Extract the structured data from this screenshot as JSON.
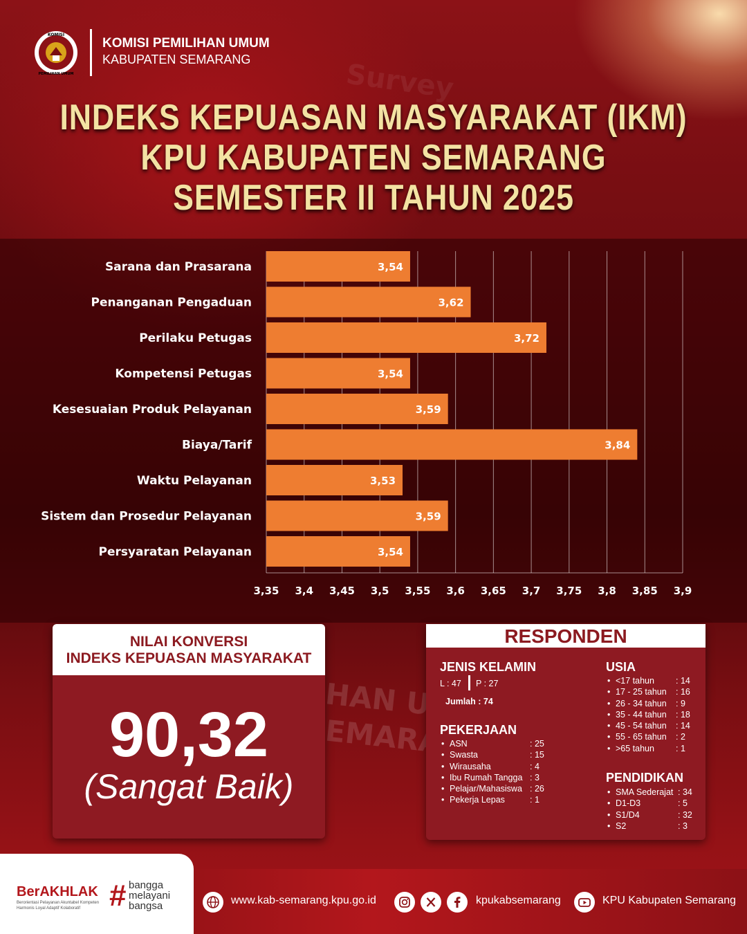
{
  "header": {
    "org_line1": "KOMISI PEMILIHAN UMUM",
    "org_line2": "KABUPATEN SEMARANG",
    "logo_text_top": "KOMISI",
    "logo_text_bottom": "PEMILIHAN UMUM"
  },
  "title": {
    "line1": "INDEKS KEPUASAN MASYARAKAT (IKM)",
    "line2": "KPU KABUPATEN SEMARANG",
    "line3": "SEMESTER II TAHUN 2025"
  },
  "chart_data": {
    "type": "bar",
    "orientation": "horizontal",
    "categories": [
      "Sarana dan Prasarana",
      "Penanganan Pengaduan",
      "Perilaku Petugas",
      "Kompetensi Petugas",
      "Kesesuaian Produk Pelayanan",
      "Biaya/Tarif",
      "Waktu Pelayanan",
      "Sistem dan Prosedur Pelayanan",
      "Persyaratan Pelayanan"
    ],
    "values": [
      3.54,
      3.62,
      3.72,
      3.54,
      3.59,
      3.84,
      3.53,
      3.59,
      3.54
    ],
    "value_labels": [
      "3,54",
      "3,62",
      "3,72",
      "3,54",
      "3,59",
      "3,84",
      "3,53",
      "3,59",
      "3,54"
    ],
    "xlim": [
      3.35,
      3.9
    ],
    "xticks": [
      3.35,
      3.4,
      3.45,
      3.5,
      3.55,
      3.6,
      3.65,
      3.7,
      3.75,
      3.8,
      3.85,
      3.9
    ],
    "xtick_labels": [
      "3,35",
      "3,4",
      "3,45",
      "3,5",
      "3,55",
      "3,6",
      "3,65",
      "3,7",
      "3,75",
      "3,8",
      "3,85",
      "3,9"
    ],
    "grid": true,
    "bar_color": "#ee7d31"
  },
  "nilai": {
    "heading_line1": "NILAI KONVERSI",
    "heading_line2": "INDEKS KEPUASAN MASYARAKAT",
    "score": "90,32",
    "category": "(Sangat Baik)"
  },
  "responden": {
    "title": "RESPONDEN",
    "jenis_kelamin": {
      "heading": "JENIS KELAMIN",
      "male": "L : 47",
      "female": "P : 27",
      "total": "Jumlah : 74"
    },
    "pekerjaan": {
      "heading": "PEKERJAAN",
      "items": [
        {
          "label": "ASN",
          "value": ": 25"
        },
        {
          "label": "Swasta",
          "value": ": 15"
        },
        {
          "label": "Wirausaha",
          "value": ": 4"
        },
        {
          "label": "Ibu Rumah Tangga",
          "value": ": 3"
        },
        {
          "label": "Pelajar/Mahasiswa",
          "value": ": 26"
        },
        {
          "label": "Pekerja Lepas",
          "value": ": 1"
        }
      ]
    },
    "usia": {
      "heading": "USIA",
      "items": [
        {
          "label": "<17 tahun",
          "value": ": 14"
        },
        {
          "label": "17 - 25 tahun",
          "value": ": 16"
        },
        {
          "label": "26 - 34 tahun",
          "value": ": 9"
        },
        {
          "label": "35 - 44 tahun",
          "value": ": 18"
        },
        {
          "label": "45 - 54 tahun",
          "value": ": 14"
        },
        {
          "label": "55 - 65 tahun",
          "value": ": 2"
        },
        {
          "label": ">65 tahun",
          "value": ": 1"
        }
      ]
    },
    "pendidikan": {
      "heading": "PENDIDIKAN",
      "items": [
        {
          "label": "SMA Sederajat",
          "value": ": 34"
        },
        {
          "label": "D1-D3",
          "value": ": 5"
        },
        {
          "label": "S1/D4",
          "value": ": 32"
        },
        {
          "label": "S2",
          "value": ": 3"
        }
      ]
    }
  },
  "background_text": {
    "survey": "Survey",
    "building1": "HAN UMU",
    "building2": "EMARAN"
  },
  "footer": {
    "berakhlak": "BerAKHLAK",
    "berakhlak_sub1": "Berorientasi Pelayanan Akuntabel Kompeten",
    "berakhlak_sub2": "Harmonis Loyal Adaptif Kolaboratif",
    "hash": "#",
    "slogan1": "bangga",
    "slogan2": "melayani",
    "slogan3": "bangsa",
    "website": "www.kab-semarang.kpu.go.id",
    "social_handle": "kpukabsemarang",
    "youtube": "KPU Kabupaten Semarang",
    "icons": [
      "globe-icon",
      "instagram-icon",
      "x-icon",
      "facebook-icon",
      "youtube-icon"
    ]
  }
}
